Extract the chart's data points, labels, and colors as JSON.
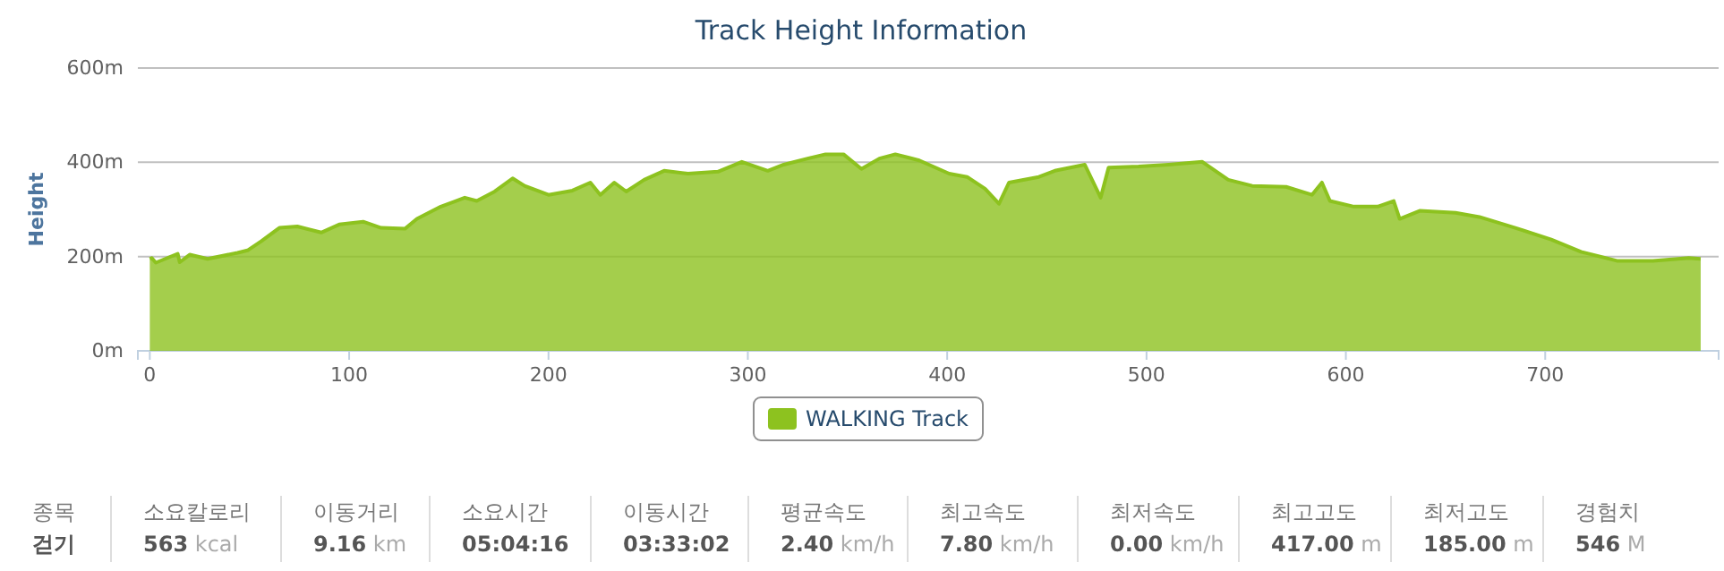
{
  "chart_data": {
    "type": "area",
    "title": "Track Height Information",
    "ylabel": "Height",
    "xlim": [
      -6,
      787
    ],
    "xticks": [
      0,
      100,
      200,
      300,
      400,
      500,
      600,
      700
    ],
    "ylim": [
      0,
      600
    ],
    "yticks": [
      {
        "value": 0,
        "label": "0m"
      },
      {
        "value": 200,
        "label": "200m"
      },
      {
        "value": 400,
        "label": "400m"
      },
      {
        "value": 600,
        "label": "600m"
      }
    ],
    "grid": "y",
    "legend": "bottom",
    "series": [
      {
        "name": "WALKING Track",
        "color": "#8dc21f",
        "x": [
          0,
          1,
          3,
          14,
          15,
          20,
          29,
          44,
          49,
          56,
          65,
          74,
          86,
          95,
          107,
          116,
          128,
          134,
          146,
          158,
          164,
          173,
          182,
          188,
          200,
          212,
          221,
          226,
          233,
          239,
          248,
          258,
          270,
          285,
          297,
          310,
          318,
          330,
          339,
          348,
          357,
          366,
          374,
          386,
          401,
          410,
          419,
          426,
          431,
          446,
          454,
          469,
          477,
          481,
          496,
          511,
          528,
          541,
          553,
          570,
          583,
          588,
          592,
          604,
          616,
          624,
          627,
          637,
          655,
          667,
          685,
          703,
          718,
          736,
          754,
          772,
          778
        ],
        "values": [
          195,
          197,
          187,
          206,
          188,
          204,
          195,
          208,
          213,
          233,
          261,
          264,
          251,
          268,
          274,
          261,
          259,
          280,
          306,
          325,
          318,
          338,
          366,
          350,
          331,
          340,
          357,
          331,
          357,
          338,
          363,
          382,
          376,
          380,
          401,
          382,
          395,
          408,
          417,
          417,
          386,
          408,
          417,
          404,
          376,
          369,
          344,
          312,
          357,
          369,
          382,
          395,
          325,
          389,
          391,
          395,
          401,
          363,
          350,
          348,
          331,
          357,
          318,
          306,
          306,
          318,
          280,
          297,
          293,
          284,
          261,
          236,
          210,
          191,
          191,
          197,
          195
        ]
      }
    ],
    "annotations": [
      "종목",
      "걷기",
      "소요칼로리",
      "563 kcal",
      "이동거리",
      "9.16 km",
      "소요시간",
      "05:04:16",
      "이동시간",
      "03:33:02",
      "평균속도",
      "2.40 km/h",
      "최고속도",
      "7.80 km/h",
      "최저속도",
      "0.00 km/h",
      "최고고도",
      "417.00 m",
      "최저고도",
      "185.00 m",
      "경험치",
      "546 M"
    ]
  }
}
